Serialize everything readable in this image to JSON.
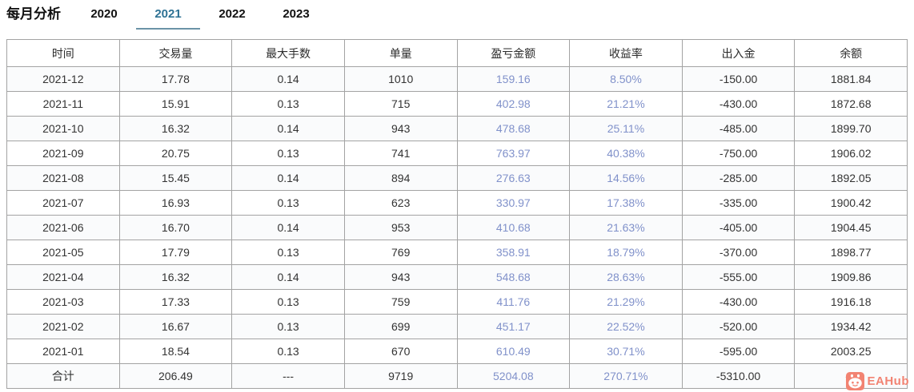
{
  "title": "每月分析",
  "tabs": {
    "items": [
      {
        "label": "2020",
        "active": false
      },
      {
        "label": "2021",
        "active": true
      },
      {
        "label": "2022",
        "active": false
      },
      {
        "label": "2023",
        "active": false
      }
    ]
  },
  "colors": {
    "active_tab_text": "#2e7294",
    "active_tab_underline": "#6b93a7",
    "accent_value_text": "#8091ca",
    "table_border": "#a3a3a3",
    "watermark": "#f28372"
  },
  "table": {
    "columns": [
      {
        "key": "time",
        "label": "时间"
      },
      {
        "key": "volume",
        "label": "交易量"
      },
      {
        "key": "max_lots",
        "label": "最大手数"
      },
      {
        "key": "orders",
        "label": "单量"
      },
      {
        "key": "profit",
        "label": "盈亏金额"
      },
      {
        "key": "return_rate",
        "label": "收益率"
      },
      {
        "key": "net_deposit",
        "label": "出入金"
      },
      {
        "key": "balance",
        "label": "余额"
      }
    ],
    "accent_columns": [
      4,
      5
    ],
    "rows": [
      [
        "2021-12",
        "17.78",
        "0.14",
        "1010",
        "159.16",
        "8.50%",
        "-150.00",
        "1881.84"
      ],
      [
        "2021-11",
        "15.91",
        "0.13",
        "715",
        "402.98",
        "21.21%",
        "-430.00",
        "1872.68"
      ],
      [
        "2021-10",
        "16.32",
        "0.14",
        "943",
        "478.68",
        "25.11%",
        "-485.00",
        "1899.70"
      ],
      [
        "2021-09",
        "20.75",
        "0.13",
        "741",
        "763.97",
        "40.38%",
        "-750.00",
        "1906.02"
      ],
      [
        "2021-08",
        "15.45",
        "0.14",
        "894",
        "276.63",
        "14.56%",
        "-285.00",
        "1892.05"
      ],
      [
        "2021-07",
        "16.93",
        "0.13",
        "623",
        "330.97",
        "17.38%",
        "-335.00",
        "1900.42"
      ],
      [
        "2021-06",
        "16.70",
        "0.14",
        "953",
        "410.68",
        "21.63%",
        "-405.00",
        "1904.45"
      ],
      [
        "2021-05",
        "17.79",
        "0.13",
        "769",
        "358.91",
        "18.79%",
        "-370.00",
        "1898.77"
      ],
      [
        "2021-04",
        "16.32",
        "0.14",
        "943",
        "548.68",
        "28.63%",
        "-555.00",
        "1909.86"
      ],
      [
        "2021-03",
        "17.33",
        "0.13",
        "759",
        "411.76",
        "21.29%",
        "-430.00",
        "1916.18"
      ],
      [
        "2021-02",
        "16.67",
        "0.13",
        "699",
        "451.17",
        "22.52%",
        "-520.00",
        "1934.42"
      ],
      [
        "2021-01",
        "18.54",
        "0.13",
        "670",
        "610.49",
        "30.71%",
        "-595.00",
        "2003.25"
      ],
      [
        "合计",
        "206.49",
        "---",
        "9719",
        "5204.08",
        "270.71%",
        "-5310.00",
        "---"
      ]
    ],
    "total_row_label": "合计"
  },
  "watermark": {
    "label": "EAHub"
  }
}
